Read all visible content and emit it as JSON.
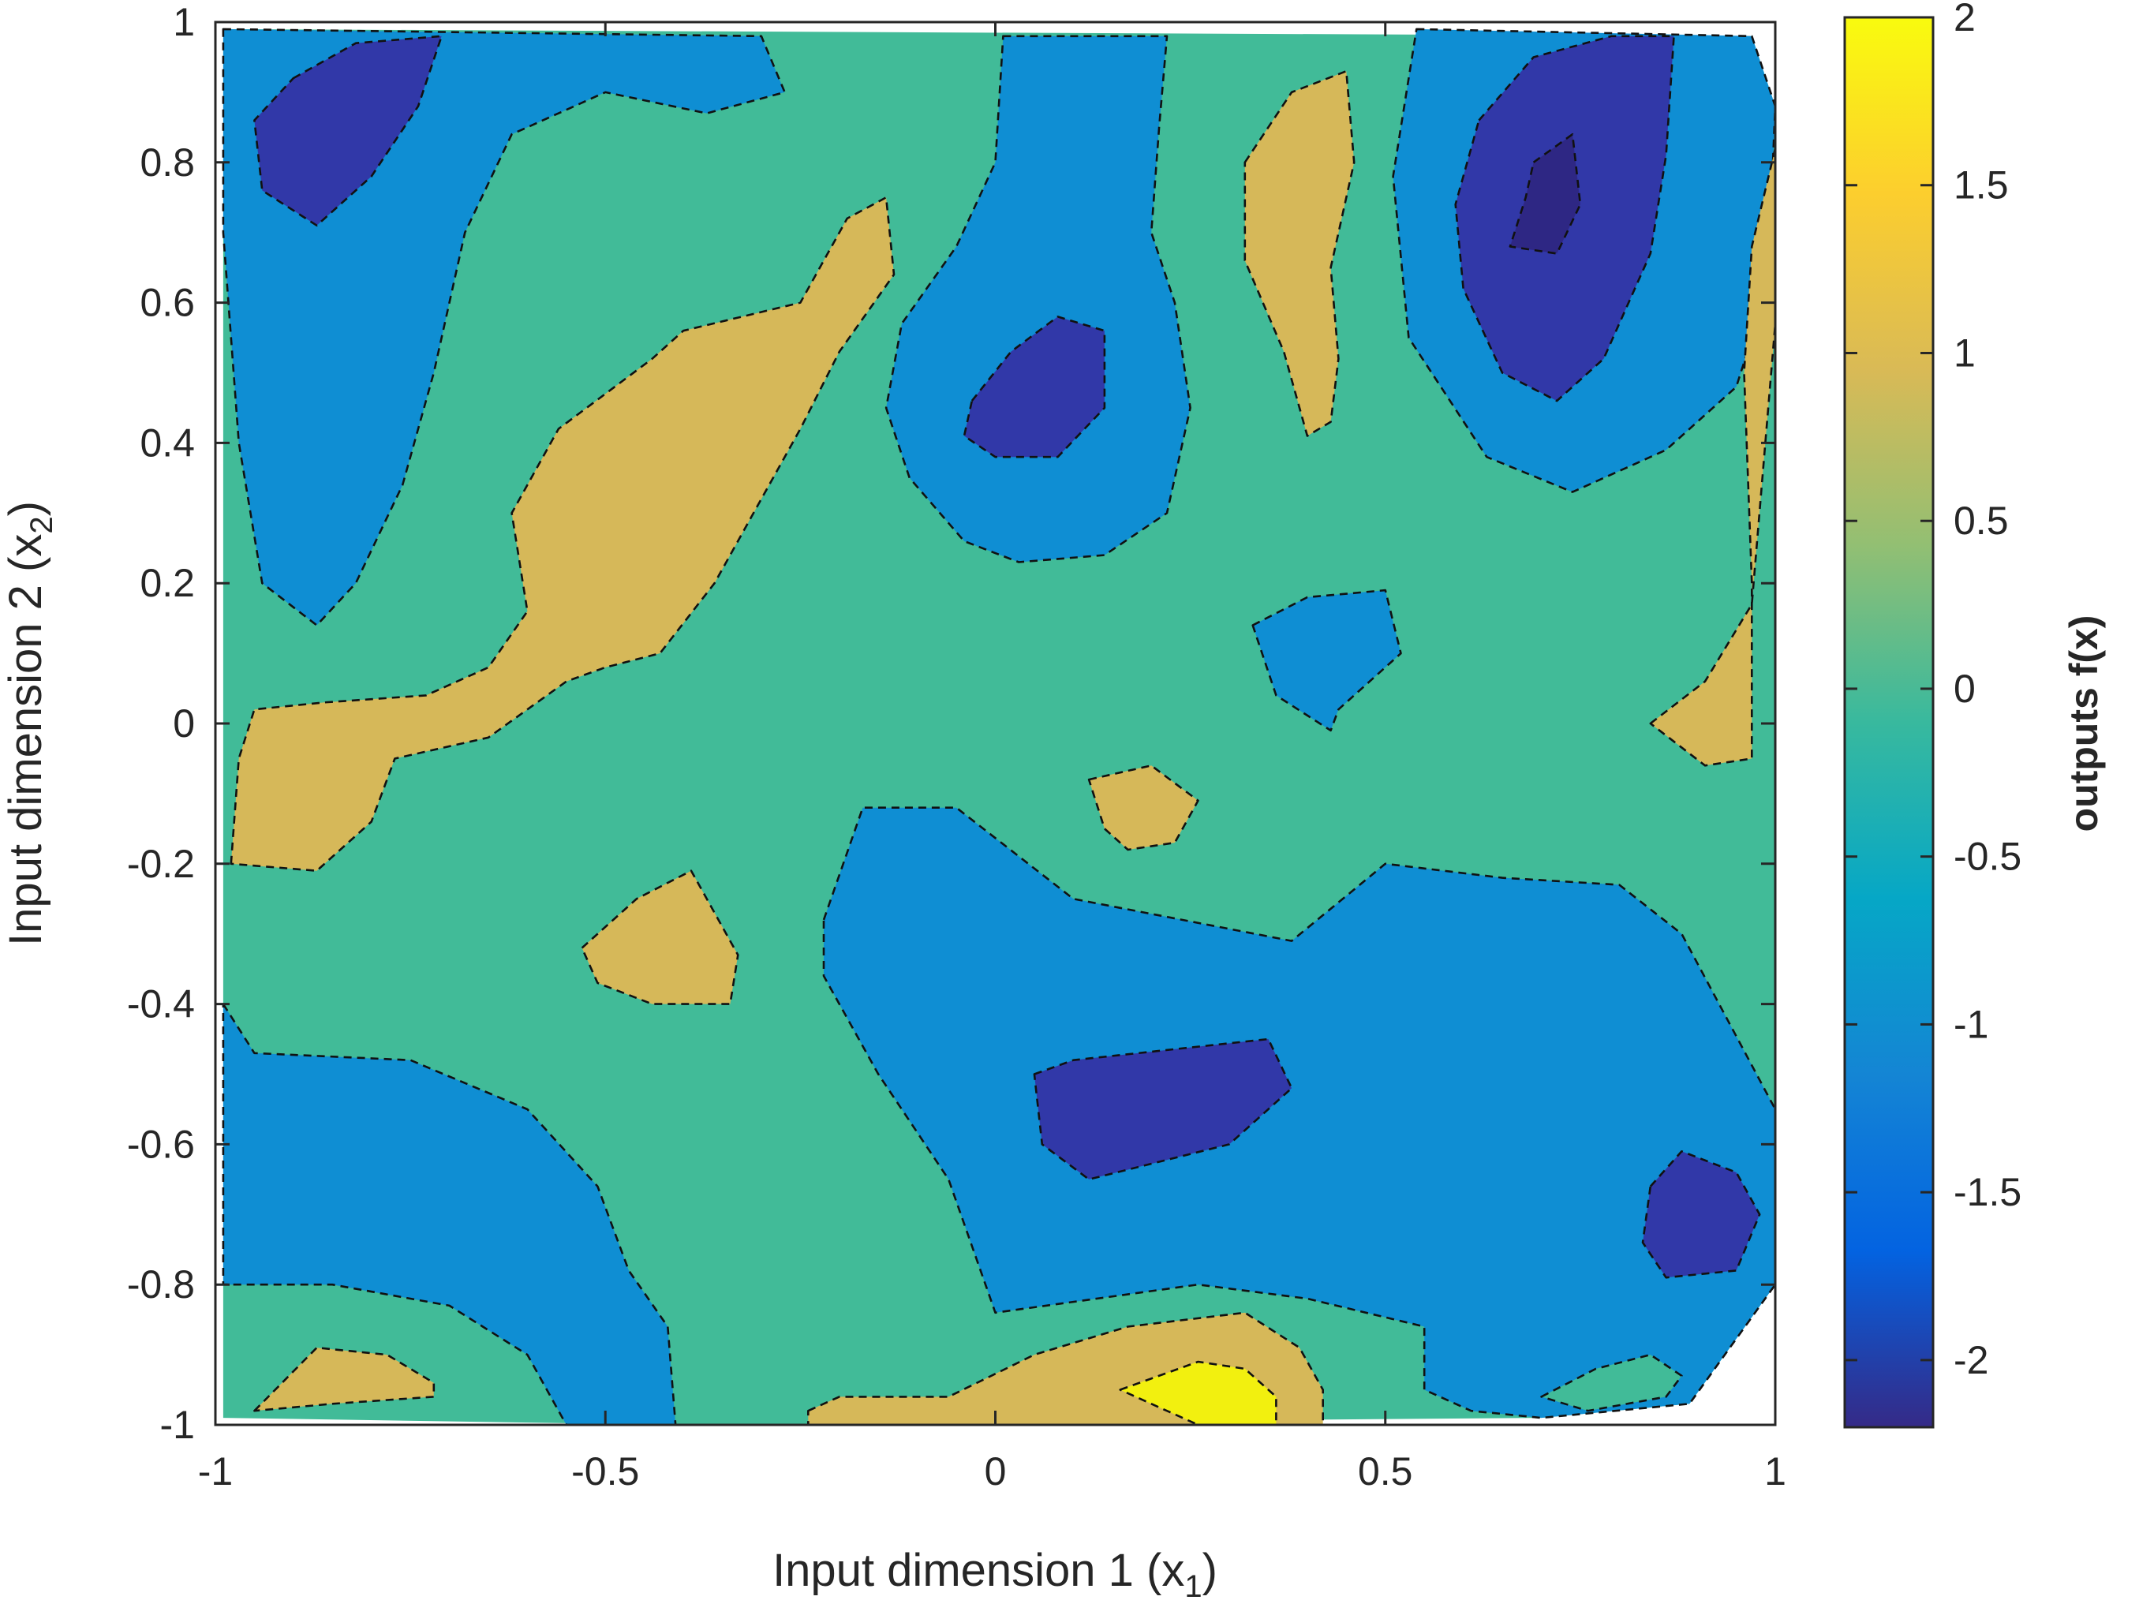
{
  "chart_data": {
    "type": "contour",
    "title": "",
    "xlabel_main": "Input dimension 1 (x",
    "xlabel_sub": "1",
    "xlabel_close": ")",
    "ylabel_main": "Input dimension 2 (x",
    "ylabel_sub": "2",
    "ylabel_close": ")",
    "colorbar_label": "outputs f(x)",
    "xlim": [
      -1,
      1
    ],
    "ylim": [
      -1,
      1
    ],
    "clim": [
      -2.2,
      2
    ],
    "x_ticks": [
      -1,
      -0.5,
      0,
      0.5,
      1
    ],
    "x_tick_labels": [
      "-1",
      "-0.5",
      "0",
      "0.5",
      "1"
    ],
    "y_ticks": [
      -1,
      -0.8,
      -0.6,
      -0.4,
      -0.2,
      0,
      0.2,
      0.4,
      0.6,
      0.8,
      1
    ],
    "y_tick_labels": [
      "-1",
      "-0.8",
      "-0.6",
      "-0.4",
      "-0.2",
      "0",
      "0.2",
      "0.4",
      "0.6",
      "0.8",
      "1"
    ],
    "colorbar_ticks": [
      -2,
      -1.5,
      -1,
      -0.5,
      0,
      0.5,
      1,
      1.5,
      2
    ],
    "colorbar_tick_labels": [
      "-2",
      "-1.5",
      "-1",
      "-0.5",
      "0",
      "0.5",
      "1",
      "1.5",
      "2"
    ],
    "colormap_stops": [
      "#352a87",
      "#0363e1",
      "#1485d4",
      "#06a7c6",
      "#38b99e",
      "#92bf73",
      "#d9ba56",
      "#fcce2e",
      "#f9fb0e"
    ],
    "level_fill_colors": {
      "-2.25": "#2e2784",
      "-1.75": "#3138a8",
      "-1.0": "#0f8ed3",
      "0.0": "#41bb98",
      "1.0": "#d6b859",
      "1.75": "#f2f00f"
    },
    "background_level": 0.0,
    "regions": [
      {
        "level": -1.0,
        "points": [
          [
            -0.99,
            0.99
          ],
          [
            -0.3,
            0.98
          ],
          [
            -0.27,
            0.9
          ],
          [
            -0.37,
            0.87
          ],
          [
            -0.5,
            0.9
          ],
          [
            -0.62,
            0.84
          ],
          [
            -0.68,
            0.7
          ],
          [
            -0.72,
            0.5
          ],
          [
            -0.76,
            0.34
          ],
          [
            -0.82,
            0.2
          ],
          [
            -0.87,
            0.14
          ],
          [
            -0.94,
            0.2
          ],
          [
            -0.97,
            0.4
          ],
          [
            -0.99,
            0.7
          ]
        ]
      },
      {
        "level": -1.75,
        "points": [
          [
            -0.9,
            0.92
          ],
          [
            -0.82,
            0.97
          ],
          [
            -0.71,
            0.98
          ],
          [
            -0.74,
            0.88
          ],
          [
            -0.8,
            0.78
          ],
          [
            -0.87,
            0.71
          ],
          [
            -0.94,
            0.76
          ],
          [
            -0.95,
            0.86
          ]
        ]
      },
      {
        "level": -1.0,
        "points": [
          [
            0.01,
            0.98
          ],
          [
            0.22,
            0.98
          ],
          [
            0.21,
            0.85
          ],
          [
            0.2,
            0.7
          ],
          [
            0.23,
            0.6
          ],
          [
            0.25,
            0.45
          ],
          [
            0.22,
            0.3
          ],
          [
            0.14,
            0.24
          ],
          [
            0.03,
            0.23
          ],
          [
            -0.04,
            0.26
          ],
          [
            -0.11,
            0.35
          ],
          [
            -0.14,
            0.45
          ],
          [
            -0.12,
            0.57
          ],
          [
            -0.05,
            0.68
          ],
          [
            0.0,
            0.8
          ]
        ]
      },
      {
        "level": -1.75,
        "points": [
          [
            -0.03,
            0.46
          ],
          [
            0.02,
            0.53
          ],
          [
            0.08,
            0.58
          ],
          [
            0.14,
            0.56
          ],
          [
            0.14,
            0.45
          ],
          [
            0.08,
            0.38
          ],
          [
            0.0,
            0.38
          ],
          [
            -0.04,
            0.41
          ]
        ]
      },
      {
        "level": -1.0,
        "points": [
          [
            0.54,
            0.99
          ],
          [
            0.97,
            0.98
          ],
          [
            1.0,
            0.88
          ],
          [
            0.99,
            0.62
          ],
          [
            0.95,
            0.48
          ],
          [
            0.86,
            0.39
          ],
          [
            0.74,
            0.33
          ],
          [
            0.63,
            0.38
          ],
          [
            0.53,
            0.55
          ],
          [
            0.51,
            0.78
          ]
        ]
      },
      {
        "level": -1.75,
        "points": [
          [
            0.62,
            0.86
          ],
          [
            0.69,
            0.95
          ],
          [
            0.79,
            0.98
          ],
          [
            0.87,
            0.98
          ],
          [
            0.86,
            0.81
          ],
          [
            0.84,
            0.67
          ],
          [
            0.78,
            0.52
          ],
          [
            0.72,
            0.46
          ],
          [
            0.65,
            0.5
          ],
          [
            0.6,
            0.62
          ],
          [
            0.59,
            0.74
          ]
        ]
      },
      {
        "level": -2.25,
        "points": [
          [
            0.69,
            0.8
          ],
          [
            0.74,
            0.84
          ],
          [
            0.75,
            0.74
          ],
          [
            0.72,
            0.67
          ],
          [
            0.66,
            0.68
          ],
          [
            0.68,
            0.75
          ]
        ]
      },
      {
        "level": -1.0,
        "points": [
          [
            0.33,
            0.14
          ],
          [
            0.4,
            0.18
          ],
          [
            0.5,
            0.19
          ],
          [
            0.52,
            0.1
          ],
          [
            0.44,
            0.02
          ],
          [
            0.43,
            -0.01
          ],
          [
            0.36,
            0.04
          ]
        ]
      },
      {
        "level": -1.0,
        "points": [
          [
            -0.22,
            -0.28
          ],
          [
            -0.17,
            -0.12
          ],
          [
            -0.05,
            -0.12
          ],
          [
            0.1,
            -0.25
          ],
          [
            0.38,
            -0.31
          ],
          [
            0.5,
            -0.2
          ],
          [
            0.65,
            -0.22
          ],
          [
            0.8,
            -0.23
          ],
          [
            0.88,
            -0.3
          ],
          [
            1.0,
            -0.55
          ],
          [
            1.0,
            -0.8
          ],
          [
            0.89,
            -0.97
          ],
          [
            0.7,
            -0.99
          ],
          [
            0.61,
            -0.98
          ],
          [
            0.55,
            -0.95
          ],
          [
            0.55,
            -0.86
          ],
          [
            0.4,
            -0.82
          ],
          [
            0.26,
            -0.8
          ],
          [
            0.0,
            -0.84
          ],
          [
            -0.06,
            -0.65
          ],
          [
            -0.15,
            -0.5
          ],
          [
            -0.22,
            -0.36
          ]
        ]
      },
      {
        "level": -1.75,
        "points": [
          [
            0.05,
            -0.5
          ],
          [
            0.1,
            -0.48
          ],
          [
            0.35,
            -0.45
          ],
          [
            0.38,
            -0.52
          ],
          [
            0.3,
            -0.6
          ],
          [
            0.12,
            -0.65
          ],
          [
            0.06,
            -0.6
          ]
        ]
      },
      {
        "level": -1.75,
        "points": [
          [
            0.84,
            -0.66
          ],
          [
            0.88,
            -0.61
          ],
          [
            0.95,
            -0.64
          ],
          [
            0.98,
            -0.7
          ],
          [
            0.95,
            -0.78
          ],
          [
            0.86,
            -0.79
          ],
          [
            0.83,
            -0.74
          ]
        ]
      },
      {
        "level": 0.0,
        "points": [
          [
            0.7,
            -0.96
          ],
          [
            0.77,
            -0.92
          ],
          [
            0.84,
            -0.9
          ],
          [
            0.88,
            -0.93
          ],
          [
            0.86,
            -0.96
          ],
          [
            0.76,
            -0.98
          ]
        ]
      },
      {
        "level": -1.0,
        "points": [
          [
            -0.99,
            -0.4
          ],
          [
            -0.95,
            -0.47
          ],
          [
            -0.75,
            -0.48
          ],
          [
            -0.6,
            -0.55
          ],
          [
            -0.51,
            -0.66
          ],
          [
            -0.47,
            -0.78
          ],
          [
            -0.42,
            -0.86
          ],
          [
            -0.41,
            -1.0
          ],
          [
            -0.55,
            -1.0
          ],
          [
            -0.6,
            -0.9
          ],
          [
            -0.7,
            -0.83
          ],
          [
            -0.85,
            -0.8
          ],
          [
            -0.99,
            -0.8
          ]
        ]
      },
      {
        "level": 1.0,
        "points": [
          [
            -0.95,
            -0.98
          ],
          [
            -0.87,
            -0.89
          ],
          [
            -0.78,
            -0.9
          ],
          [
            -0.72,
            -0.94
          ],
          [
            -0.72,
            -0.96
          ],
          [
            -0.85,
            -0.97
          ]
        ]
      },
      {
        "level": 1.0,
        "points": [
          [
            -0.98,
            -0.2
          ],
          [
            -0.97,
            -0.05
          ],
          [
            -0.95,
            0.02
          ],
          [
            -0.86,
            0.03
          ],
          [
            -0.73,
            0.04
          ],
          [
            -0.65,
            0.08
          ],
          [
            -0.6,
            0.16
          ],
          [
            -0.62,
            0.3
          ],
          [
            -0.56,
            0.42
          ],
          [
            -0.44,
            0.52
          ],
          [
            -0.4,
            0.56
          ],
          [
            -0.25,
            0.6
          ],
          [
            -0.19,
            0.72
          ],
          [
            -0.14,
            0.75
          ],
          [
            -0.13,
            0.64
          ],
          [
            -0.2,
            0.53
          ],
          [
            -0.25,
            0.42
          ],
          [
            -0.3,
            0.32
          ],
          [
            -0.36,
            0.2
          ],
          [
            -0.43,
            0.1
          ],
          [
            -0.5,
            0.08
          ],
          [
            -0.55,
            0.06
          ],
          [
            -0.65,
            -0.02
          ],
          [
            -0.77,
            -0.05
          ],
          [
            -0.8,
            -0.14
          ],
          [
            -0.87,
            -0.21
          ]
        ]
      },
      {
        "level": 1.0,
        "points": [
          [
            -0.53,
            -0.32
          ],
          [
            -0.46,
            -0.25
          ],
          [
            -0.39,
            -0.21
          ],
          [
            -0.33,
            -0.33
          ],
          [
            -0.34,
            -0.4
          ],
          [
            -0.44,
            -0.4
          ],
          [
            -0.51,
            -0.37
          ]
        ]
      },
      {
        "level": 1.0,
        "points": [
          [
            0.12,
            -0.08
          ],
          [
            0.2,
            -0.06
          ],
          [
            0.26,
            -0.11
          ],
          [
            0.23,
            -0.17
          ],
          [
            0.17,
            -0.18
          ],
          [
            0.14,
            -0.15
          ]
        ]
      },
      {
        "level": 1.0,
        "points": [
          [
            0.32,
            0.8
          ],
          [
            0.38,
            0.9
          ],
          [
            0.45,
            0.93
          ],
          [
            0.46,
            0.8
          ],
          [
            0.43,
            0.65
          ],
          [
            0.44,
            0.52
          ],
          [
            0.43,
            0.43
          ],
          [
            0.4,
            0.41
          ],
          [
            0.37,
            0.53
          ],
          [
            0.32,
            0.66
          ]
        ]
      },
      {
        "level": 1.0,
        "points": [
          [
            0.84,
            0.0
          ],
          [
            0.91,
            0.06
          ],
          [
            0.97,
            0.17
          ],
          [
            1.0,
            0.57
          ],
          [
            1.0,
            0.82
          ],
          [
            0.97,
            0.68
          ],
          [
            0.96,
            0.5
          ],
          [
            0.97,
            0.2
          ],
          [
            0.97,
            -0.05
          ],
          [
            0.91,
            -0.06
          ]
        ]
      },
      {
        "level": 1.0,
        "points": [
          [
            -0.24,
            -0.98
          ],
          [
            -0.2,
            -0.96
          ],
          [
            -0.06,
            -0.96
          ],
          [
            0.05,
            -0.9
          ],
          [
            0.17,
            -0.86
          ],
          [
            0.32,
            -0.84
          ],
          [
            0.39,
            -0.89
          ],
          [
            0.42,
            -0.95
          ],
          [
            0.42,
            -1.0
          ],
          [
            -0.24,
            -1.0
          ]
        ]
      },
      {
        "level": 1.75,
        "points": [
          [
            0.16,
            -0.95
          ],
          [
            0.26,
            -0.91
          ],
          [
            0.32,
            -0.92
          ],
          [
            0.36,
            -0.96
          ],
          [
            0.36,
            -1.0
          ],
          [
            0.26,
            -1.0
          ],
          [
            0.2,
            -0.97
          ]
        ]
      }
    ]
  }
}
